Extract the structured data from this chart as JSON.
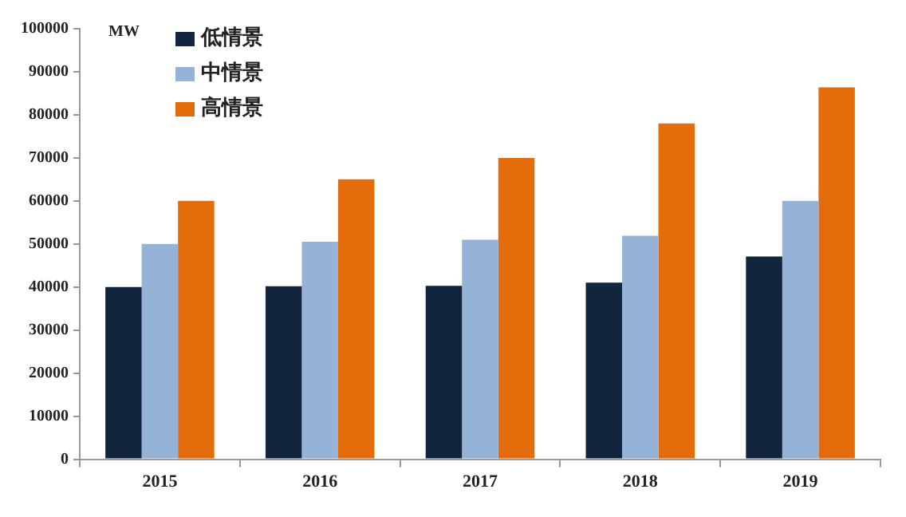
{
  "chart_data": {
    "type": "bar",
    "ylabel": "MW",
    "categories": [
      "2015",
      "2016",
      "2017",
      "2018",
      "2019"
    ],
    "series": [
      {
        "name": "低情景",
        "color": "#12253f",
        "values": [
          40000,
          40200,
          40300,
          41000,
          47100
        ]
      },
      {
        "name": "中情景",
        "color": "#95b3d7",
        "values": [
          50000,
          50500,
          51000,
          51900,
          60000
        ]
      },
      {
        "name": "高情景",
        "color": "#e46c0a",
        "values": [
          60000,
          65000,
          70000,
          78000,
          86400
        ]
      }
    ],
    "ylim": [
      0,
      100000
    ],
    "yticks": [
      0,
      10000,
      20000,
      30000,
      40000,
      50000,
      60000,
      70000,
      80000,
      90000,
      100000
    ],
    "grid": false,
    "legend": "top left"
  }
}
